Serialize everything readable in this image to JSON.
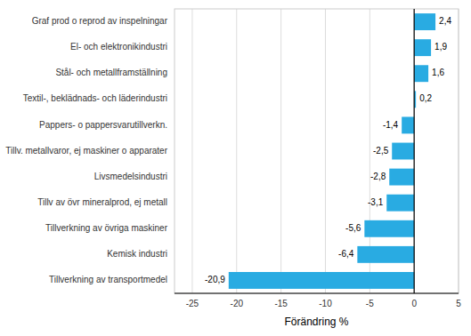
{
  "chart_data": {
    "type": "bar",
    "orientation": "horizontal",
    "categories": [
      "Tillverkning av transportmedel",
      "Kemisk industri",
      "Tillverkning av övriga maskiner",
      "Tillv av övr mineralprod, ej metall",
      "Livsmedelsindustri",
      "Tillv. metallvaror, ej maskiner o apparater",
      "Pappers- o pappersvarutillverkn.",
      "Textil-, beklädnads- och läderindustri",
      "Stål- och metallframställning",
      "El- och elektronikindustri",
      "Graf prod o reprod av inspelningar"
    ],
    "values": [
      -20.9,
      -6.4,
      -5.6,
      -3.1,
      -2.8,
      -2.5,
      -1.4,
      0.2,
      1.6,
      1.9,
      2.4
    ],
    "value_labels": [
      "-20,9",
      "-6,4",
      "-5,6",
      "-3,1",
      "-2,8",
      "-2,5",
      "-1,4",
      "0,2",
      "1,6",
      "1,9",
      "2,4"
    ],
    "data_labels": true,
    "color": "#29ABE2",
    "xlabel": "Förändring %",
    "xlim": [
      -27,
      5
    ],
    "xticks": [
      -25,
      -20,
      -15,
      -10,
      -5,
      0,
      5
    ],
    "grid": true
  }
}
